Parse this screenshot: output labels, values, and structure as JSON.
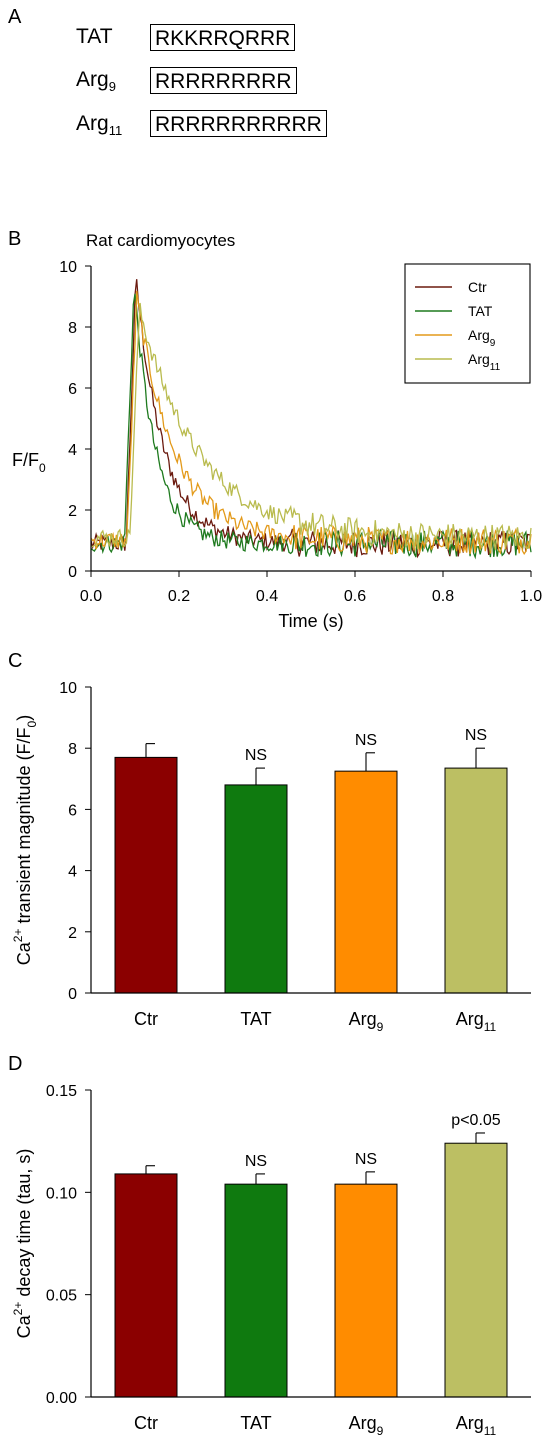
{
  "panels": {
    "a": {
      "label": "A",
      "sequences": [
        {
          "name": "TAT",
          "name_sub": "",
          "sequence": "RKKRRQRRR"
        },
        {
          "name": "Arg",
          "name_sub": "9",
          "sequence": "RRRRRRRRR"
        },
        {
          "name": "Arg",
          "name_sub": "11",
          "sequence": "RRRRRRRRRRR"
        }
      ]
    },
    "b": {
      "label": "B"
    },
    "c": {
      "label": "C"
    },
    "d": {
      "label": "D"
    }
  },
  "chart_data": [
    {
      "id": "traces",
      "type": "line",
      "title": "Rat cardiomyocytes",
      "xlabel": "Time (s)",
      "ylabel": "F/F",
      "ylabel_sub": "0",
      "xlim": [
        0.0,
        1.0
      ],
      "ylim": [
        0,
        10
      ],
      "xticks": [
        "0.0",
        "0.2",
        "0.4",
        "0.6",
        "0.8",
        "1.0"
      ],
      "yticks": [
        "0",
        "2",
        "4",
        "6",
        "8",
        "10"
      ],
      "grid": false,
      "legend": "top-right",
      "series": [
        {
          "name": "Ctr",
          "name_sub": "",
          "color": "#6b1a0f",
          "peak": 9.6,
          "peak_t": 0.102,
          "tau": 0.062,
          "baseline": 0.9
        },
        {
          "name": "TAT",
          "name_sub": "",
          "color": "#1e7a1e",
          "peak": 9.4,
          "peak_t": 0.098,
          "tau": 0.048,
          "baseline": 0.9
        },
        {
          "name": "Arg",
          "name_sub": "9",
          "color": "#e39a1a",
          "peak": 9.0,
          "peak_t": 0.104,
          "tau": 0.085,
          "baseline": 1.0
        },
        {
          "name": "Arg",
          "name_sub": "11",
          "color": "#b9bb4e",
          "peak": 8.6,
          "peak_t": 0.11,
          "tau": 0.135,
          "baseline": 1.1
        }
      ]
    },
    {
      "id": "magnitude",
      "type": "bar",
      "ylabel_pre": "Ca",
      "ylabel_sup": "2+",
      "ylabel_post": " transient magnitude (F/F",
      "ylabel_sub": "0",
      "ylabel_end": ")",
      "ylim": [
        0,
        10
      ],
      "yticks": [
        "0",
        "2",
        "4",
        "6",
        "8",
        "10"
      ],
      "categories": [
        {
          "name": "Ctr",
          "sub": ""
        },
        {
          "name": "TAT",
          "sub": ""
        },
        {
          "name": "Arg",
          "sub": "9"
        },
        {
          "name": "Arg",
          "sub": "11"
        }
      ],
      "values": [
        7.7,
        6.8,
        7.25,
        7.35
      ],
      "errors": [
        0.45,
        0.55,
        0.6,
        0.65
      ],
      "annotations": [
        "",
        "NS",
        "NS",
        "NS"
      ],
      "colors": [
        "#8b0000",
        "#0f7a0f",
        "#ff8c00",
        "#bcbf63"
      ]
    },
    {
      "id": "decay",
      "type": "bar",
      "ylabel_pre": "Ca",
      "ylabel_sup": "2+",
      "ylabel_post": " decay time (tau, s)",
      "ylabel_sub": "",
      "ylabel_end": "",
      "ylim": [
        0,
        0.15
      ],
      "yticks": [
        "0.00",
        "0.05",
        "0.10",
        "0.15"
      ],
      "categories": [
        {
          "name": "Ctr",
          "sub": ""
        },
        {
          "name": "TAT",
          "sub": ""
        },
        {
          "name": "Arg",
          "sub": "9"
        },
        {
          "name": "Arg",
          "sub": "11"
        }
      ],
      "values": [
        0.109,
        0.104,
        0.104,
        0.124
      ],
      "errors": [
        0.004,
        0.005,
        0.006,
        0.005
      ],
      "annotations": [
        "",
        "NS",
        "NS",
        "p<0.05"
      ],
      "colors": [
        "#8b0000",
        "#0f7a0f",
        "#ff8c00",
        "#bcbf63"
      ]
    }
  ]
}
